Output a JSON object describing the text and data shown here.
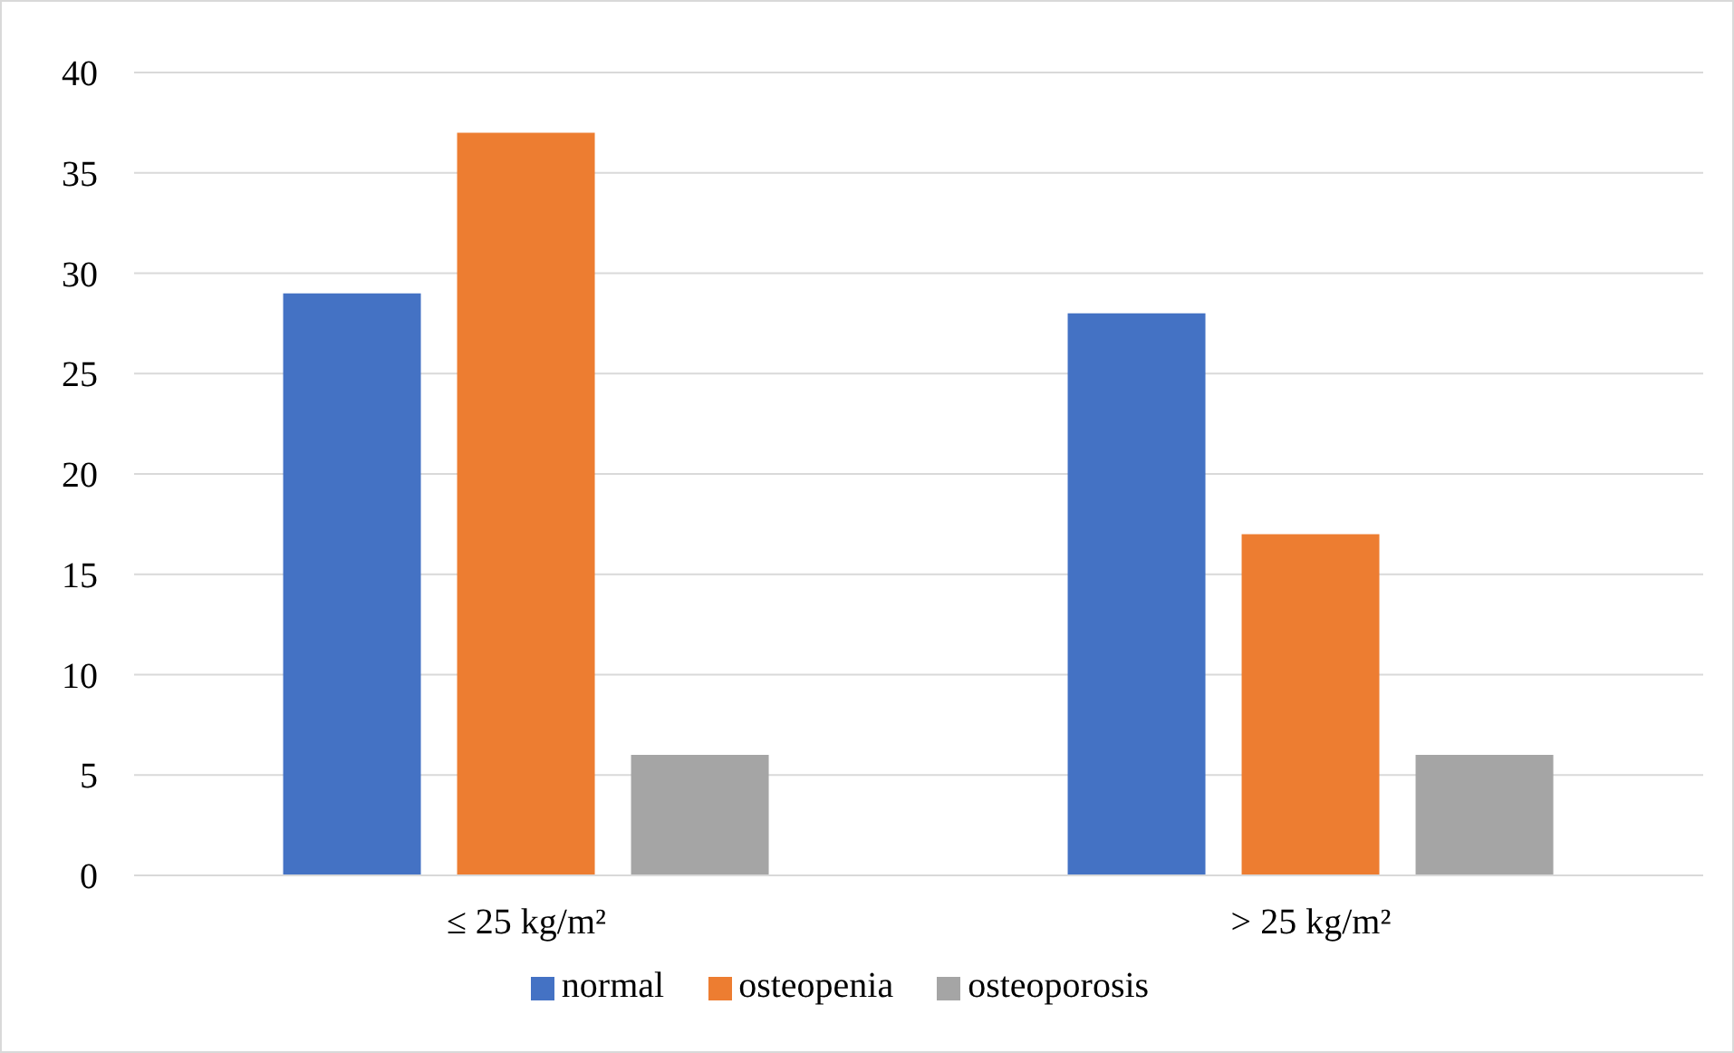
{
  "chart_data": {
    "type": "bar",
    "categories": [
      "≤ 25 kg/m²",
      "> 25 kg/m²"
    ],
    "series": [
      {
        "name": "normal",
        "color": "#4472c4",
        "values": [
          29,
          28
        ]
      },
      {
        "name": "osteopenia",
        "color": "#ed7d31",
        "values": [
          37,
          17
        ]
      },
      {
        "name": "osteoporosis",
        "color": "#a5a5a5",
        "values": [
          6,
          6
        ]
      }
    ],
    "ylim": [
      0,
      40
    ],
    "yticks": [
      0,
      5,
      10,
      15,
      20,
      25,
      30,
      35,
      40
    ],
    "grid": "y",
    "legend": "bottom"
  }
}
